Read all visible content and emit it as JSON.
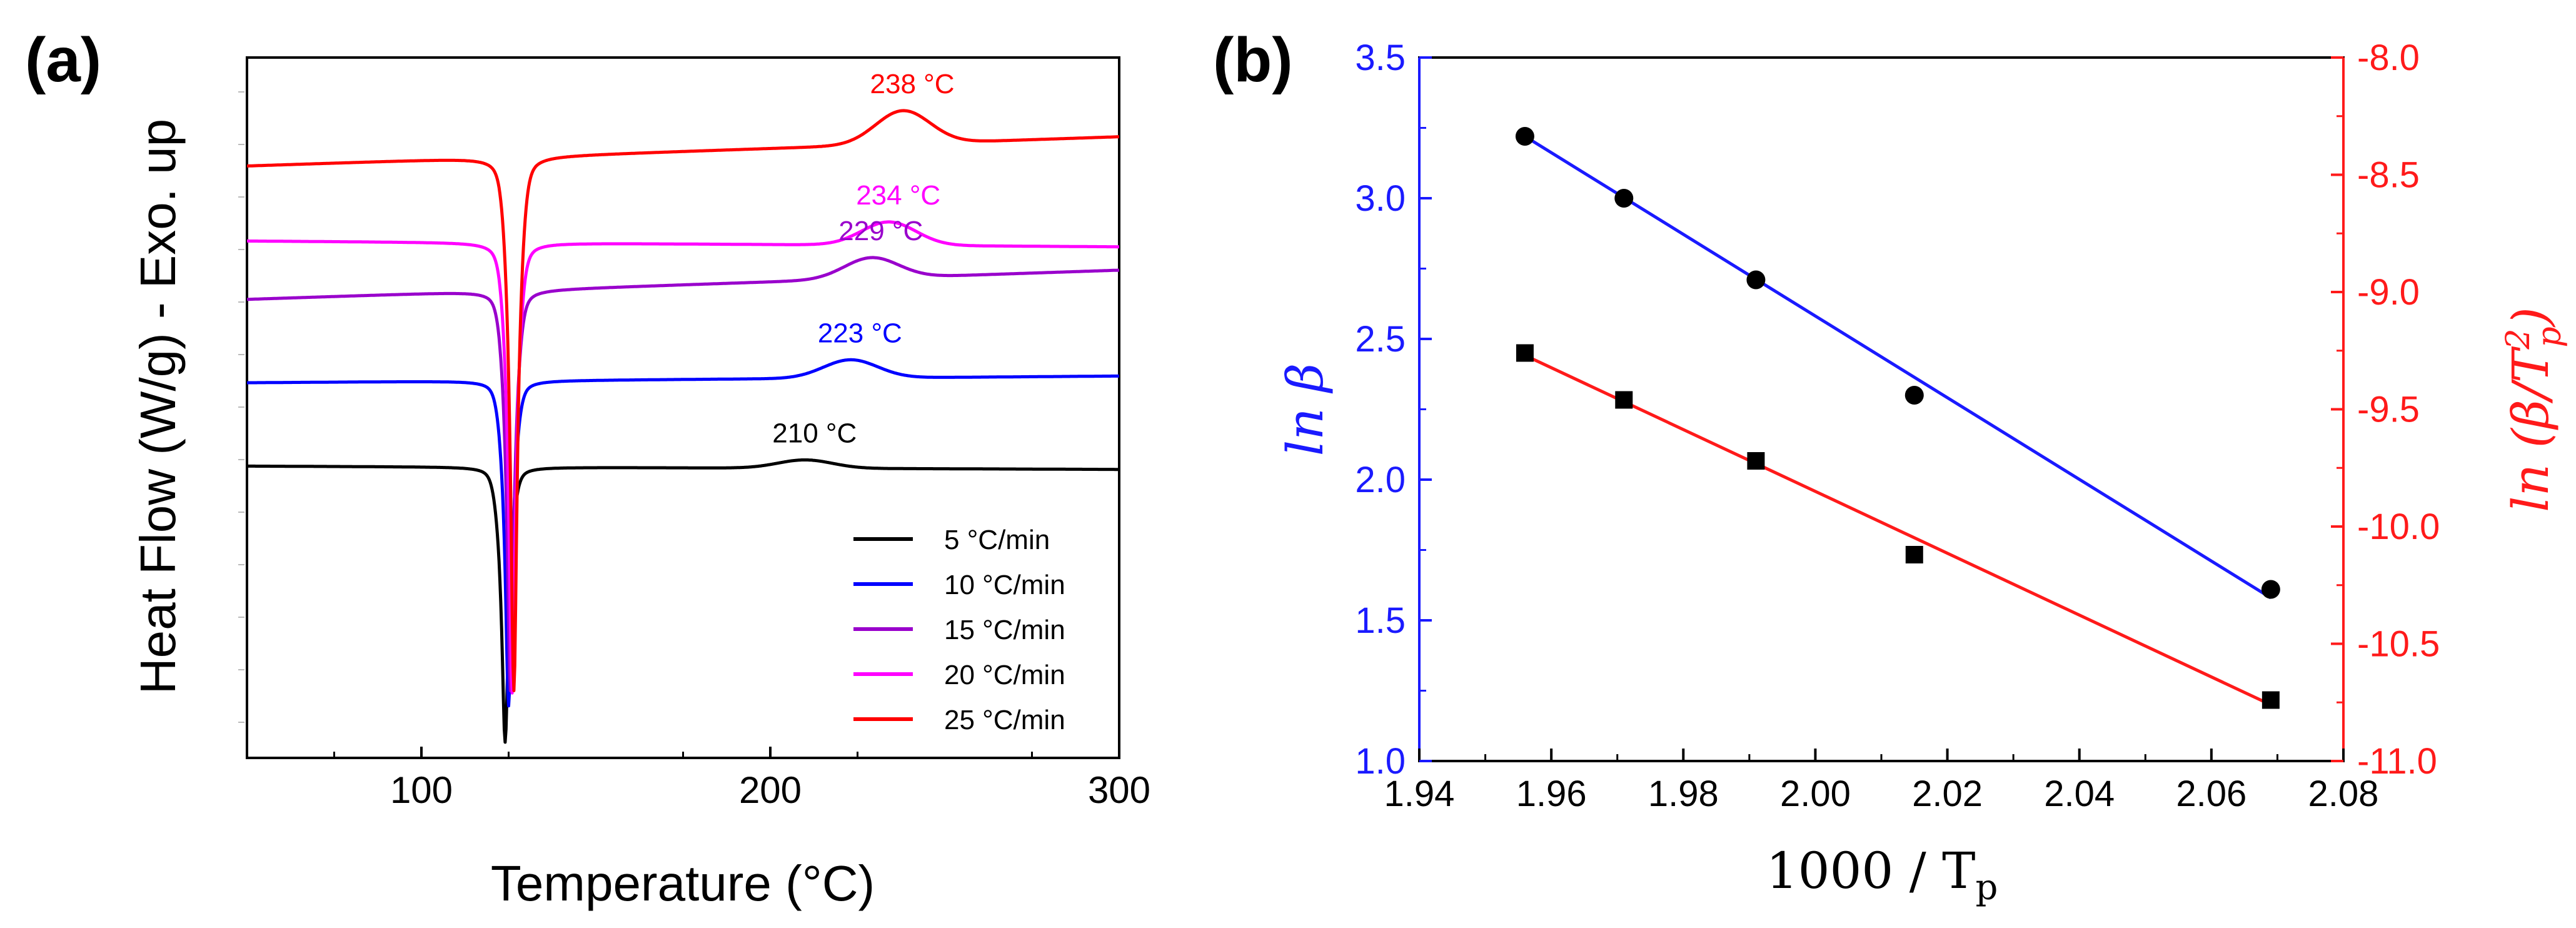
{
  "chart_data": [
    {
      "panel_label": "(a)",
      "type": "line",
      "title": "",
      "xlabel": "Temperature (°C)",
      "ylabel": "Heat Flow (W/g)  -  Exo. up",
      "xlim": [
        50,
        300
      ],
      "xticks": [
        100,
        200,
        300
      ],
      "xtick_labels": [
        "100",
        "200",
        "300"
      ],
      "grid": false,
      "legend_position": "bottom-right",
      "series": [
        {
          "name": "5 °C/min",
          "color": "#000000",
          "baseline": 0.0,
          "tail": -0.04,
          "endo_peak_x": 124.0,
          "endo_depth": -3.3,
          "exo_peak_x": 210,
          "exo_height": 0.1,
          "peak_label": "210 °C"
        },
        {
          "name": "10 °C/min",
          "color": "#0000ff",
          "baseline": 1.0,
          "tail": 1.08,
          "endo_peak_x": 125.0,
          "endo_depth": -3.9,
          "exo_peak_x": 223,
          "exo_height": 0.22,
          "peak_label": "223 °C"
        },
        {
          "name": "15 °C/min",
          "color": "#9900cc",
          "baseline": 2.0,
          "tail": 2.35,
          "endo_peak_x": 125.5,
          "endo_depth": -4.8,
          "exo_peak_x": 229,
          "exo_height": 0.25,
          "peak_label": "229 °C"
        },
        {
          "name": "20 °C/min",
          "color": "#ff00ff",
          "baseline": 2.7,
          "tail": 2.63,
          "endo_peak_x": 126.0,
          "endo_depth": -5.4,
          "exo_peak_x": 234,
          "exo_height": 0.28,
          "peak_label": "234 °C"
        },
        {
          "name": "25 °C/min",
          "color": "#ff0000",
          "baseline": 3.6,
          "tail": 3.95,
          "endo_peak_x": 126.5,
          "endo_depth": -6.4,
          "exo_peak_x": 238,
          "exo_height": 0.4,
          "peak_label": "238 °C"
        }
      ],
      "ylim": [
        -3.5,
        4.9
      ]
    },
    {
      "panel_label": "(b)",
      "type": "scatter",
      "title": "",
      "xlabel": "1000 / T",
      "xlabel_subscript": "p",
      "ylabel_left": "ln β",
      "ylabel_right": "ln (β/T",
      "ylabel_right_tail": "2",
      "ylabel_right_sub": "p",
      "ylabel_right_close": ")",
      "xlim": [
        1.94,
        2.08
      ],
      "xticks": [
        "1.94",
        "1.96",
        "1.98",
        "2.00",
        "2.02",
        "2.04",
        "2.06",
        "2.08"
      ],
      "ylim_left": [
        1.0,
        3.5
      ],
      "yticks_left": [
        "1.0",
        "1.5",
        "2.0",
        "2.5",
        "3.0",
        "3.5"
      ],
      "ylim_right": [
        -11.0,
        -8.0
      ],
      "yticks_right": [
        "-8.0",
        "-8.5",
        "-9.0",
        "-9.5",
        "-10.0",
        "-10.5",
        "-11.0"
      ],
      "left_color": "#1a1aff",
      "right_color": "#ff1a1a",
      "grid": false,
      "series": [
        {
          "name": "ln β",
          "axis": "left",
          "marker": "circle",
          "fit_color": "#1a1aff",
          "x": [
            1.956,
            1.971,
            1.991,
            2.015,
            2.069
          ],
          "y": [
            3.22,
            3.0,
            2.71,
            2.3,
            1.61
          ],
          "fit": {
            "x": [
              1.956,
              2.069
            ],
            "y": [
              3.22,
              1.58
            ]
          }
        },
        {
          "name": "ln (β/Tp²)",
          "axis": "right",
          "marker": "square",
          "fit_color": "#ff1a1a",
          "x": [
            1.956,
            1.971,
            1.991,
            2.015,
            2.069
          ],
          "y": [
            -9.26,
            -9.46,
            -9.72,
            -10.12,
            -10.74
          ],
          "fit": {
            "x": [
              1.956,
              2.069
            ],
            "y": [
              -9.27,
              -10.76
            ]
          }
        }
      ]
    }
  ]
}
